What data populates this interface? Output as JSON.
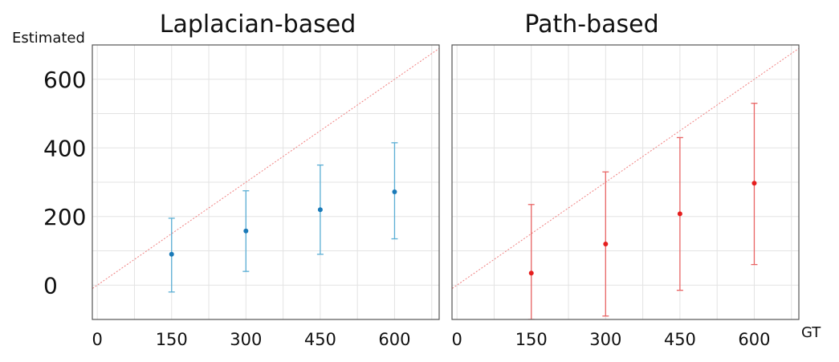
{
  "y_label": "Estimated",
  "x_label": "GT",
  "chart_data": [
    {
      "type": "scatter",
      "title": "Laplacian-based",
      "ylabel": "Estimated",
      "xlabel": "",
      "xlim": [
        -10,
        690
      ],
      "ylim": [
        -100,
        700
      ],
      "x_ticks": [
        0,
        150,
        300,
        450,
        600
      ],
      "y_ticks": [
        0,
        200,
        400,
        600
      ],
      "grid": true,
      "reference_line": "y = x",
      "series": [
        {
          "color": "#1a7ab8",
          "errbar_color": "#5aaed4",
          "points": [
            {
              "x": 150,
              "y": 90,
              "low": -20,
              "high": 195
            },
            {
              "x": 300,
              "y": 158,
              "low": 40,
              "high": 275
            },
            {
              "x": 450,
              "y": 220,
              "low": 90,
              "high": 350
            },
            {
              "x": 600,
              "y": 272,
              "low": 135,
              "high": 415
            }
          ]
        }
      ]
    },
    {
      "type": "scatter",
      "title": "Path-based",
      "ylabel": "",
      "xlabel": "GT",
      "xlim": [
        -10,
        690
      ],
      "ylim": [
        -100,
        700
      ],
      "x_ticks": [
        0,
        150,
        300,
        450,
        600
      ],
      "y_ticks": [
        0,
        200,
        400,
        600
      ],
      "grid": true,
      "reference_line": "y = x",
      "series": [
        {
          "color": "#e51e1e",
          "errbar_color": "#e96565",
          "points": [
            {
              "x": 150,
              "y": 35,
              "low": -100,
              "high": 235
            },
            {
              "x": 300,
              "y": 120,
              "low": -90,
              "high": 330
            },
            {
              "x": 450,
              "y": 208,
              "low": -15,
              "high": 430
            },
            {
              "x": 600,
              "y": 297,
              "low": 60,
              "high": 530
            }
          ]
        }
      ]
    }
  ]
}
